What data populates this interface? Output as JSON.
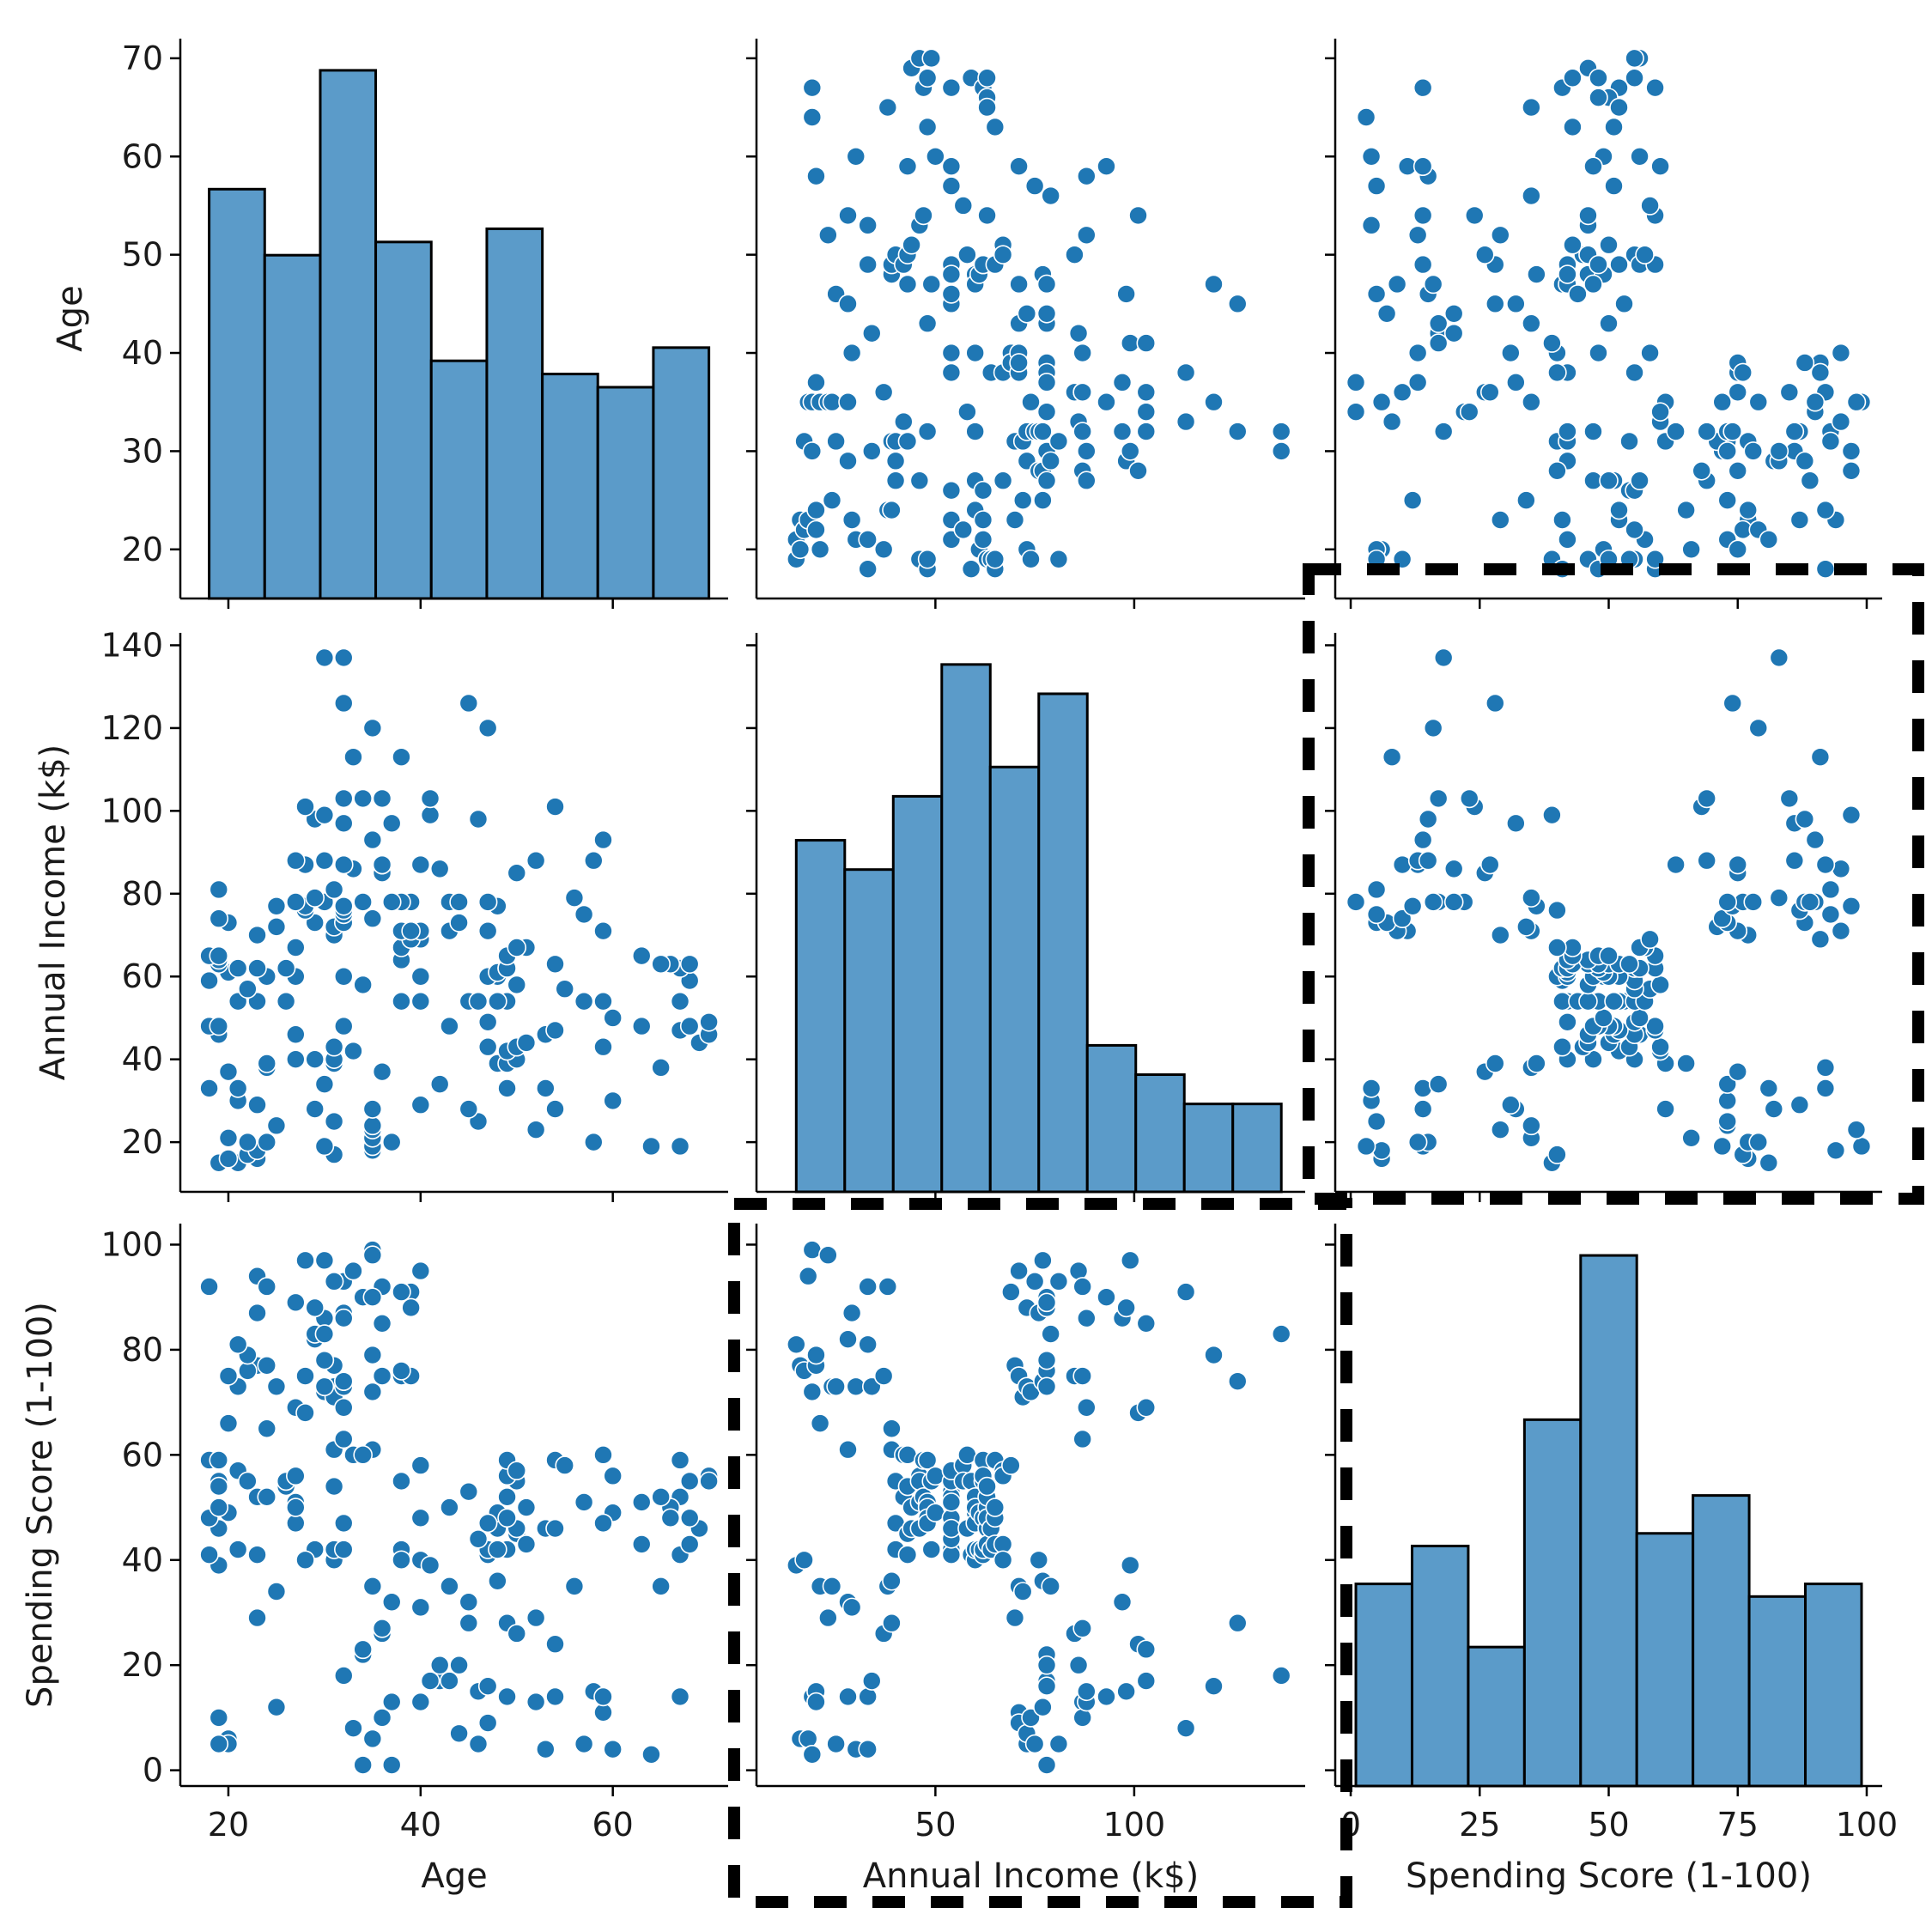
{
  "chart_data": {
    "type": "scatter",
    "kind": "pairplot",
    "variables": [
      "Age",
      "Annual Income (k$)",
      "Spending Score (1-100)"
    ],
    "colors": {
      "marker": "#1f77b4",
      "bar": "#5b9bc9",
      "bar_edge": "#000000",
      "highlight": "#000000"
    },
    "axes": {
      "age": {
        "label": "Age",
        "range": [
          15,
          72
        ],
        "ticks": [
          20,
          40,
          60
        ],
        "y_ticks": [
          20,
          30,
          40,
          50,
          60,
          70
        ],
        "y_range": [
          15,
          72
        ]
      },
      "income": {
        "label": "Annual Income (k$)",
        "range": [
          5,
          143
        ],
        "ticks": [
          50,
          100
        ],
        "y_ticks": [
          20,
          40,
          60,
          80,
          100,
          120,
          140
        ],
        "y_range": [
          8,
          143
        ]
      },
      "spending": {
        "label": "Spending Score (1-100)",
        "range": [
          -3,
          103
        ],
        "ticks": [
          0,
          25,
          50,
          75,
          100
        ],
        "y_ticks": [
          0,
          20,
          40,
          60,
          80,
          100
        ],
        "y_range": [
          -3,
          104
        ]
      }
    },
    "histograms": {
      "age": {
        "bins": [
          18,
          23.78,
          29.56,
          35.33,
          41.11,
          46.89,
          52.67,
          58.44,
          64.22,
          70
        ],
        "counts": [
          31,
          26,
          40,
          27,
          18,
          28,
          17,
          16,
          19
        ]
      },
      "income": {
        "bins": [
          15,
          27.2,
          39.4,
          51.6,
          63.8,
          76,
          88.2,
          100.4,
          112.6,
          124.8,
          137
        ],
        "counts": [
          24,
          22,
          27,
          36,
          29,
          34,
          10,
          8,
          6,
          6
        ]
      },
      "spending": {
        "bins": [
          1,
          11.89,
          22.78,
          33.67,
          44.56,
          55.44,
          66.33,
          77.22,
          88.11,
          99
        ],
        "counts": [
          16,
          19,
          11,
          29,
          42,
          20,
          23,
          15,
          16
        ]
      }
    },
    "points": [
      [
        19,
        15,
        39
      ],
      [
        21,
        15,
        81
      ],
      [
        20,
        16,
        6
      ],
      [
        23,
        16,
        77
      ],
      [
        31,
        17,
        40
      ],
      [
        22,
        17,
        76
      ],
      [
        35,
        18,
        6
      ],
      [
        23,
        18,
        94
      ],
      [
        64,
        19,
        3
      ],
      [
        30,
        19,
        72
      ],
      [
        67,
        19,
        14
      ],
      [
        35,
        19,
        99
      ],
      [
        58,
        20,
        15
      ],
      [
        24,
        20,
        77
      ],
      [
        37,
        20,
        13
      ],
      [
        22,
        20,
        79
      ],
      [
        35,
        21,
        35
      ],
      [
        20,
        21,
        66
      ],
      [
        52,
        23,
        29
      ],
      [
        35,
        23,
        98
      ],
      [
        35,
        24,
        35
      ],
      [
        25,
        24,
        73
      ],
      [
        46,
        25,
        5
      ],
      [
        31,
        25,
        73
      ],
      [
        54,
        28,
        14
      ],
      [
        29,
        28,
        82
      ],
      [
        45,
        28,
        32
      ],
      [
        35,
        28,
        61
      ],
      [
        40,
        29,
        31
      ],
      [
        23,
        29,
        87
      ],
      [
        60,
        30,
        4
      ],
      [
        21,
        30,
        73
      ],
      [
        53,
        33,
        4
      ],
      [
        18,
        33,
        92
      ],
      [
        49,
        33,
        14
      ],
      [
        21,
        33,
        81
      ],
      [
        42,
        34,
        17
      ],
      [
        30,
        34,
        73
      ],
      [
        36,
        37,
        26
      ],
      [
        20,
        37,
        75
      ],
      [
        65,
        38,
        35
      ],
      [
        24,
        38,
        92
      ],
      [
        48,
        39,
        36
      ],
      [
        31,
        39,
        61
      ],
      [
        49,
        39,
        28
      ],
      [
        24,
        39,
        65
      ],
      [
        50,
        40,
        55
      ],
      [
        27,
        40,
        47
      ],
      [
        29,
        40,
        42
      ],
      [
        31,
        40,
        42
      ],
      [
        49,
        42,
        52
      ],
      [
        33,
        42,
        60
      ],
      [
        31,
        43,
        54
      ],
      [
        59,
        43,
        60
      ],
      [
        50,
        43,
        45
      ],
      [
        47,
        43,
        41
      ],
      [
        51,
        44,
        50
      ],
      [
        69,
        44,
        46
      ],
      [
        27,
        46,
        51
      ],
      [
        53,
        46,
        46
      ],
      [
        70,
        46,
        56
      ],
      [
        19,
        46,
        55
      ],
      [
        67,
        47,
        52
      ],
      [
        54,
        47,
        59
      ],
      [
        63,
        48,
        51
      ],
      [
        18,
        48,
        59
      ],
      [
        43,
        48,
        50
      ],
      [
        68,
        48,
        48
      ],
      [
        19,
        48,
        59
      ],
      [
        32,
        48,
        47
      ],
      [
        70,
        49,
        55
      ],
      [
        47,
        49,
        42
      ],
      [
        60,
        50,
        49
      ],
      [
        60,
        50,
        56
      ],
      [
        59,
        54,
        47
      ],
      [
        26,
        54,
        54
      ],
      [
        45,
        54,
        53
      ],
      [
        40,
        54,
        48
      ],
      [
        23,
        54,
        52
      ],
      [
        49,
        54,
        42
      ],
      [
        57,
        54,
        51
      ],
      [
        38,
        54,
        55
      ],
      [
        67,
        54,
        41
      ],
      [
        46,
        54,
        44
      ],
      [
        21,
        54,
        57
      ],
      [
        48,
        54,
        46
      ],
      [
        55,
        57,
        58
      ],
      [
        22,
        57,
        55
      ],
      [
        34,
        58,
        60
      ],
      [
        50,
        58,
        46
      ],
      [
        68,
        59,
        55
      ],
      [
        18,
        59,
        41
      ],
      [
        48,
        60,
        49
      ],
      [
        40,
        60,
        40
      ],
      [
        32,
        60,
        42
      ],
      [
        24,
        60,
        52
      ],
      [
        47,
        60,
        47
      ],
      [
        27,
        60,
        50
      ],
      [
        48,
        61,
        42
      ],
      [
        20,
        61,
        49
      ],
      [
        23,
        62,
        41
      ],
      [
        49,
        62,
        48
      ],
      [
        67,
        62,
        59
      ],
      [
        26,
        62,
        55
      ],
      [
        49,
        62,
        56
      ],
      [
        21,
        62,
        42
      ],
      [
        66,
        63,
        50
      ],
      [
        54,
        63,
        46
      ],
      [
        68,
        63,
        43
      ],
      [
        66,
        63,
        48
      ],
      [
        65,
        63,
        52
      ],
      [
        19,
        63,
        54
      ],
      [
        38,
        64,
        42
      ],
      [
        19,
        64,
        46
      ],
      [
        18,
        65,
        48
      ],
      [
        19,
        65,
        50
      ],
      [
        63,
        65,
        43
      ],
      [
        49,
        65,
        59
      ],
      [
        51,
        67,
        43
      ],
      [
        50,
        67,
        57
      ],
      [
        27,
        67,
        56
      ],
      [
        38,
        67,
        40
      ],
      [
        40,
        69,
        58
      ],
      [
        39,
        69,
        91
      ],
      [
        23,
        70,
        29
      ],
      [
        31,
        70,
        77
      ],
      [
        43,
        71,
        35
      ],
      [
        40,
        71,
        95
      ],
      [
        59,
        71,
        11
      ],
      [
        38,
        71,
        75
      ],
      [
        47,
        71,
        9
      ],
      [
        39,
        71,
        75
      ],
      [
        25,
        72,
        34
      ],
      [
        31,
        72,
        71
      ],
      [
        20,
        73,
        5
      ],
      [
        29,
        73,
        88
      ],
      [
        44,
        73,
        7
      ],
      [
        32,
        73,
        73
      ],
      [
        19,
        74,
        10
      ],
      [
        35,
        74,
        72
      ],
      [
        57,
        75,
        5
      ],
      [
        32,
        75,
        93
      ],
      [
        28,
        76,
        40
      ],
      [
        32,
        76,
        87
      ],
      [
        25,
        77,
        12
      ],
      [
        28,
        77,
        97
      ],
      [
        48,
        77,
        36
      ],
      [
        32,
        77,
        74
      ],
      [
        34,
        78,
        22
      ],
      [
        34,
        78,
        90
      ],
      [
        43,
        78,
        17
      ],
      [
        39,
        78,
        88
      ],
      [
        44,
        78,
        20
      ],
      [
        38,
        78,
        76
      ],
      [
        47,
        78,
        16
      ],
      [
        27,
        78,
        89
      ],
      [
        37,
        78,
        1
      ],
      [
        30,
        78,
        78
      ],
      [
        34,
        78,
        1
      ],
      [
        30,
        78,
        73
      ],
      [
        56,
        79,
        35
      ],
      [
        29,
        79,
        83
      ],
      [
        19,
        81,
        5
      ],
      [
        31,
        81,
        93
      ],
      [
        50,
        85,
        26
      ],
      [
        36,
        85,
        75
      ],
      [
        42,
        86,
        20
      ],
      [
        33,
        86,
        95
      ],
      [
        36,
        87,
        27
      ],
      [
        32,
        87,
        63
      ],
      [
        40,
        87,
        13
      ],
      [
        28,
        87,
        75
      ],
      [
        36,
        87,
        10
      ],
      [
        36,
        87,
        92
      ],
      [
        52,
        88,
        13
      ],
      [
        30,
        88,
        86
      ],
      [
        58,
        88,
        15
      ],
      [
        27,
        88,
        69
      ],
      [
        59,
        93,
        14
      ],
      [
        35,
        93,
        90
      ],
      [
        37,
        97,
        32
      ],
      [
        32,
        97,
        86
      ],
      [
        46,
        98,
        15
      ],
      [
        29,
        98,
        88
      ],
      [
        41,
        99,
        39
      ],
      [
        30,
        99,
        97
      ],
      [
        54,
        101,
        24
      ],
      [
        28,
        101,
        68
      ],
      [
        41,
        103,
        17
      ],
      [
        36,
        103,
        85
      ],
      [
        34,
        103,
        23
      ],
      [
        32,
        103,
        69
      ],
      [
        33,
        113,
        8
      ],
      [
        38,
        113,
        91
      ],
      [
        47,
        120,
        16
      ],
      [
        35,
        120,
        79
      ],
      [
        45,
        126,
        28
      ],
      [
        32,
        126,
        74
      ],
      [
        32,
        137,
        18
      ],
      [
        30,
        137,
        83
      ]
    ],
    "highlighted_panels": [
      "Annual Income (k$) vs Spending Score (1-100)",
      "Spending Score (1-100) vs Annual Income (k$)"
    ]
  }
}
